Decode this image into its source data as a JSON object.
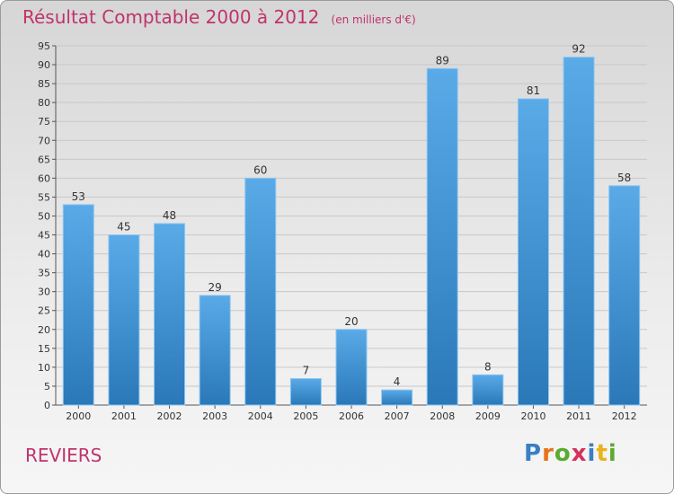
{
  "title": "Résultat Comptable 2000 à 2012",
  "subtitle": "(en milliers d'€)",
  "commune": "REVIERS",
  "logo": {
    "letters": [
      "P",
      "r",
      "o",
      "x",
      "i",
      "t",
      "i"
    ],
    "colors": [
      "#3a7fc4",
      "#e8731a",
      "#5aab2e",
      "#d6305c",
      "#3a7fc4",
      "#e8b41a",
      "#5aab2e"
    ]
  },
  "chart_data": {
    "type": "bar",
    "categories": [
      "2000",
      "2001",
      "2002",
      "2003",
      "2004",
      "2005",
      "2006",
      "2007",
      "2008",
      "2009",
      "2010",
      "2011",
      "2012"
    ],
    "values": [
      53,
      45,
      48,
      29,
      60,
      7,
      20,
      4,
      89,
      8,
      81,
      92,
      58
    ],
    "ylim": [
      0,
      95
    ],
    "yticks": [
      0,
      5,
      10,
      15,
      20,
      25,
      30,
      35,
      40,
      45,
      50,
      55,
      60,
      65,
      70,
      75,
      80,
      85,
      90,
      95
    ],
    "grid": true,
    "bar_color_light": "#5aaae8",
    "bar_color_dark": "#2a78b8",
    "title_color": "#c0336b"
  }
}
